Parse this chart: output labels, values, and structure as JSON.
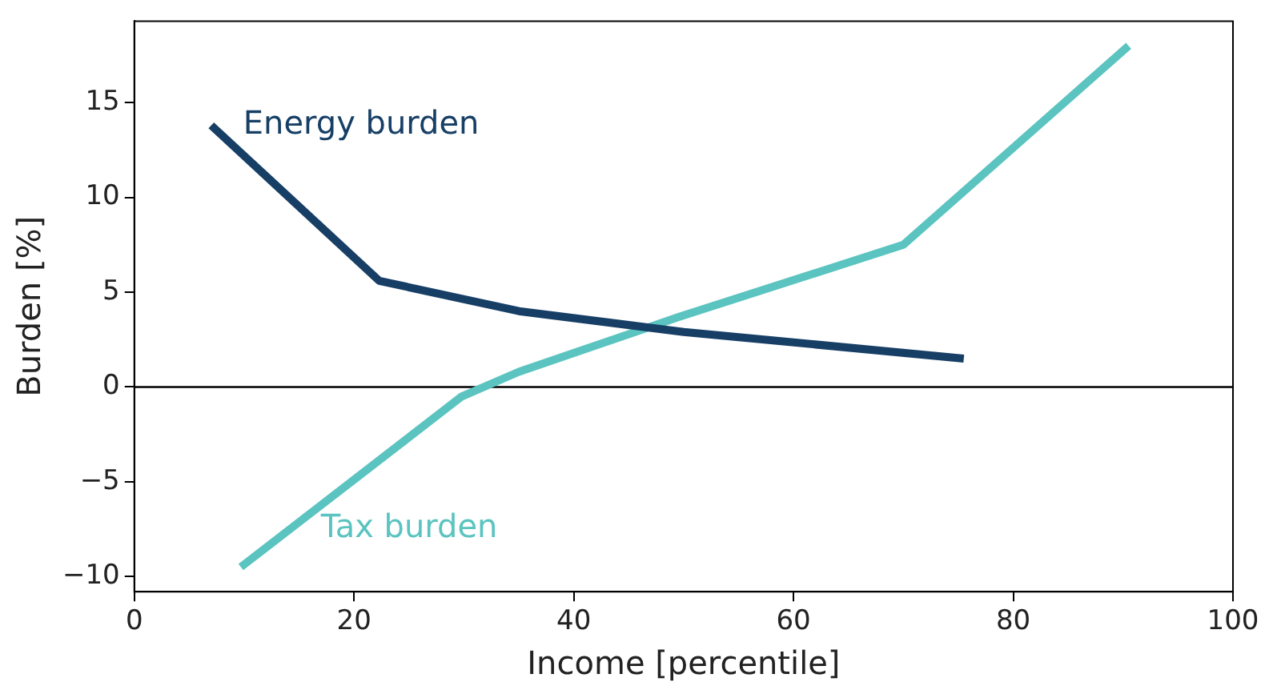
{
  "chart_data": {
    "type": "line",
    "xlabel": "Income [percentile]",
    "ylabel": "Burden [%]",
    "xlim": [
      0,
      100
    ],
    "xticks": [
      0,
      20,
      40,
      60,
      80,
      100
    ],
    "ylim": [
      -10.8,
      19.3
    ],
    "yticks": [
      -10,
      -5,
      0,
      5,
      10,
      15
    ],
    "grid": false,
    "legend": false,
    "marker": "none",
    "line_style": "solid",
    "ref_lines": [
      {
        "axis": "y",
        "value": 0,
        "color": "#000000"
      }
    ],
    "series": [
      {
        "name": "Energy burden",
        "color": "#173f66",
        "x": [
          7,
          22.3,
          35,
          50,
          75.5
        ],
        "values": [
          13.8,
          5.6,
          4.0,
          2.9,
          1.5
        ]
      },
      {
        "name": "Tax burden",
        "color": "#5bc4c0",
        "x": [
          9.7,
          29.8,
          35,
          49.6,
          70,
          90.5
        ],
        "values": [
          -9.5,
          -0.5,
          0.8,
          3.7,
          7.5,
          18.0
        ]
      }
    ]
  }
}
